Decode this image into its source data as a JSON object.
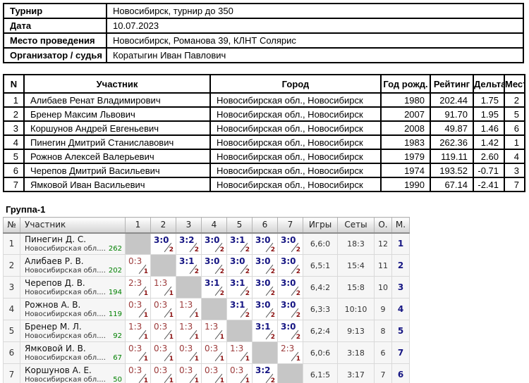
{
  "colors": {
    "win_score": "#151583",
    "loss_score": "#9c3a3a",
    "cell_sub": "#8b1010",
    "rating_green": "#008000",
    "place_navy": "#151583",
    "diagonal_bg": "#c6c6c6"
  },
  "info_table": {
    "rows": [
      {
        "label": "Турнир",
        "value": "Новосибирск, турнир до 350"
      },
      {
        "label": "Дата",
        "value": "10.07.2023"
      },
      {
        "label": "Место проведения",
        "value": "Новосибирск, Романова 39, КЛНТ Солярис"
      },
      {
        "label": "Организатор / судья",
        "value": "Коратыгин Иван Павлович"
      }
    ]
  },
  "participants_table": {
    "headers": [
      "N",
      "Участник",
      "Город",
      "Год рожд.",
      "Рейтинг",
      "Дельта",
      "Место"
    ],
    "rows": [
      {
        "n": "1",
        "name": "Алибаев Ренат Владимирович",
        "city": "Новосибирская обл., Новосибирск",
        "year": "1980",
        "rating": "202.44",
        "delta": "1.75",
        "place": "2"
      },
      {
        "n": "2",
        "name": "Бренер Максим Львович",
        "city": "Новосибирская обл., Новосибирск",
        "year": "2007",
        "rating": "91.70",
        "delta": "1.95",
        "place": "5"
      },
      {
        "n": "3",
        "name": "Коршунов Андрей Евгеньевич",
        "city": "Новосибирская обл., Новосибирск",
        "year": "2008",
        "rating": "49.87",
        "delta": "1.46",
        "place": "6"
      },
      {
        "n": "4",
        "name": "Пинегин Дмитрий Станиславович",
        "city": "Новосибирская обл., Новосибирск",
        "year": "1983",
        "rating": "262.36",
        "delta": "1.42",
        "place": "1"
      },
      {
        "n": "5",
        "name": "Рожнов Алексей Валерьевич",
        "city": "Новосибирская обл., Новосибирск",
        "year": "1979",
        "rating": "119.11",
        "delta": "2.60",
        "place": "4"
      },
      {
        "n": "6",
        "name": "Черепов Дмитрий Васильевич",
        "city": "Новосибирская обл., Новосибирск",
        "year": "1974",
        "rating": "193.52",
        "delta": "-0.71",
        "place": "3"
      },
      {
        "n": "7",
        "name": "Ямковой Иван Васильевич",
        "city": "Новосибирская обл., Новосибирск",
        "year": "1990",
        "rating": "67.14",
        "delta": "-2.41",
        "place": "7"
      }
    ]
  },
  "group": {
    "title": "Группа-1",
    "headers": [
      "№",
      "Участник",
      "1",
      "2",
      "3",
      "4",
      "5",
      "6",
      "7",
      "Игры",
      "Сеты",
      "О.",
      "М."
    ],
    "rows": [
      {
        "n": "1",
        "name": "Пинегин Д. С.",
        "region": "Новосибирская обл....",
        "rating": "262",
        "cells": [
          null,
          {
            "s": "3:0",
            "r": "w",
            "p": "2"
          },
          {
            "s": "3:2",
            "r": "w",
            "p": "2"
          },
          {
            "s": "3:0",
            "r": "w",
            "p": "2"
          },
          {
            "s": "3:1",
            "r": "w",
            "p": "2"
          },
          {
            "s": "3:0",
            "r": "w",
            "p": "2"
          },
          {
            "s": "3:0",
            "r": "w",
            "p": "2"
          }
        ],
        "games": "6,6:0",
        "sets": "18:3",
        "points": "12",
        "place": "1"
      },
      {
        "n": "2",
        "name": "Алибаев Р. В.",
        "region": "Новосибирская обл....",
        "rating": "202",
        "cells": [
          {
            "s": "0:3",
            "r": "l",
            "p": "1"
          },
          null,
          {
            "s": "3:1",
            "r": "w",
            "p": "2"
          },
          {
            "s": "3:0",
            "r": "w",
            "p": "2"
          },
          {
            "s": "3:0",
            "r": "w",
            "p": "2"
          },
          {
            "s": "3:0",
            "r": "w",
            "p": "2"
          },
          {
            "s": "3:0",
            "r": "w",
            "p": "2"
          }
        ],
        "games": "6,5:1",
        "sets": "15:4",
        "points": "11",
        "place": "2"
      },
      {
        "n": "3",
        "name": "Черепов Д. В.",
        "region": "Новосибирская обл....",
        "rating": "194",
        "cells": [
          {
            "s": "2:3",
            "r": "l",
            "p": "1"
          },
          {
            "s": "1:3",
            "r": "l",
            "p": "1"
          },
          null,
          {
            "s": "3:1",
            "r": "w",
            "p": "2"
          },
          {
            "s": "3:1",
            "r": "w",
            "p": "2"
          },
          {
            "s": "3:0",
            "r": "w",
            "p": "2"
          },
          {
            "s": "3:0",
            "r": "w",
            "p": "2"
          }
        ],
        "games": "6,4:2",
        "sets": "15:8",
        "points": "10",
        "place": "3"
      },
      {
        "n": "4",
        "name": "Рожнов А. В.",
        "region": "Новосибирская обл....",
        "rating": "119",
        "cells": [
          {
            "s": "0:3",
            "r": "l",
            "p": "1"
          },
          {
            "s": "0:3",
            "r": "l",
            "p": "1"
          },
          {
            "s": "1:3",
            "r": "l",
            "p": "1"
          },
          null,
          {
            "s": "3:1",
            "r": "w",
            "p": "2"
          },
          {
            "s": "3:0",
            "r": "w",
            "p": "2"
          },
          {
            "s": "3:0",
            "r": "w",
            "p": "2"
          }
        ],
        "games": "6,3:3",
        "sets": "10:10",
        "points": "9",
        "place": "4"
      },
      {
        "n": "5",
        "name": "Бренер М. Л.",
        "region": "Новосибирская обл....",
        "rating": "92",
        "cells": [
          {
            "s": "1:3",
            "r": "l",
            "p": "1"
          },
          {
            "s": "0:3",
            "r": "l",
            "p": "1"
          },
          {
            "s": "1:3",
            "r": "l",
            "p": "1"
          },
          {
            "s": "1:3",
            "r": "l",
            "p": "1"
          },
          null,
          {
            "s": "3:1",
            "r": "w",
            "p": "2"
          },
          {
            "s": "3:0",
            "r": "w",
            "p": "2"
          }
        ],
        "games": "6,2:4",
        "sets": "9:13",
        "points": "8",
        "place": "5"
      },
      {
        "n": "6",
        "name": "Ямковой И. В.",
        "region": "Новосибирская обл....",
        "rating": "67",
        "cells": [
          {
            "s": "0:3",
            "r": "l",
            "p": "1"
          },
          {
            "s": "0:3",
            "r": "l",
            "p": "1"
          },
          {
            "s": "0:3",
            "r": "l",
            "p": "1"
          },
          {
            "s": "0:3",
            "r": "l",
            "p": "1"
          },
          {
            "s": "1:3",
            "r": "l",
            "p": "1"
          },
          null,
          {
            "s": "2:3",
            "r": "l",
            "p": "1"
          }
        ],
        "games": "6,0:6",
        "sets": "3:18",
        "points": "6",
        "place": "7"
      },
      {
        "n": "7",
        "name": "Коршунов А. Е.",
        "region": "Новосибирская обл....",
        "rating": "50",
        "cells": [
          {
            "s": "0:3",
            "r": "l",
            "p": "1"
          },
          {
            "s": "0:3",
            "r": "l",
            "p": "1"
          },
          {
            "s": "0:3",
            "r": "l",
            "p": "1"
          },
          {
            "s": "0:3",
            "r": "l",
            "p": "1"
          },
          {
            "s": "0:3",
            "r": "l",
            "p": "1"
          },
          {
            "s": "3:2",
            "r": "w",
            "p": "2"
          },
          null
        ],
        "games": "6,1:5",
        "sets": "3:17",
        "points": "7",
        "place": "6"
      }
    ]
  }
}
